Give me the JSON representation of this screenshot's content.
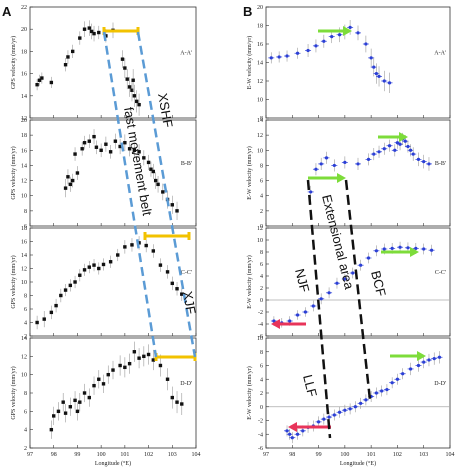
{
  "figure": {
    "panel_letters": [
      "A",
      "B"
    ],
    "x_label_left": "Longitude (°E)",
    "x_label_right": "Longitude (°E)",
    "y_label_left": "GPS velocity (mm/yr)",
    "y_label_right": "E-W velocity (mm/yr)",
    "overlay_labels": {
      "xshf": "XSHF",
      "fast_belt": "fast movement belt",
      "xjf": "XJF",
      "extensional_area": "Extensional area",
      "njf": "NJF",
      "bcf": "BCF",
      "llf": "LLF"
    },
    "colors": {
      "left_points": "#111111",
      "right_points": "#2b3fd6",
      "yellow_bar": "#f2c200",
      "blue_dash": "#5b9bd5",
      "black_dash": "#111111",
      "green_arrow": "#7ddc3a",
      "red_arrow": "#e8345a",
      "zero_line": "#aaaaaa"
    }
  },
  "chart_data": [
    {
      "type": "scatter",
      "panel": "A",
      "profile": "A-A'",
      "ylabel": "GPS velocity (mm/yr)",
      "xlabel": "",
      "xlim": [
        97,
        104
      ],
      "ylim": [
        12,
        22
      ],
      "yticks": [
        12,
        14,
        16,
        18,
        20,
        22
      ],
      "xticks": [
        97,
        98,
        99,
        100,
        101,
        102,
        103,
        104
      ],
      "show_x_tick_labels": false,
      "x": [
        97.3,
        97.4,
        97.5,
        97.9,
        98.5,
        98.6,
        98.8,
        99.1,
        99.3,
        99.5,
        99.6,
        99.7,
        99.9,
        100.2,
        100.5,
        100.9,
        101.0,
        101.1,
        101.2,
        101.3,
        101.35,
        101.4,
        101.5,
        101.6
      ],
      "y": [
        15.0,
        15.4,
        15.6,
        15.2,
        16.8,
        17.5,
        18.0,
        19.2,
        20.0,
        20.1,
        19.8,
        19.6,
        19.7,
        19.4,
        19.9,
        17.3,
        16.5,
        15.5,
        14.8,
        14.5,
        15.4,
        14.0,
        13.5,
        13.2
      ],
      "err": [
        0.5,
        0.5,
        0.5,
        0.5,
        0.6,
        0.6,
        0.6,
        0.6,
        0.7,
        0.7,
        0.7,
        0.7,
        0.6,
        0.6,
        0.7,
        0.8,
        0.9,
        0.9,
        0.9,
        1.0,
        1.0,
        1.0,
        1.0,
        1.0
      ]
    },
    {
      "type": "scatter",
      "panel": "A",
      "profile": "B-B'",
      "ylabel": "GPS velocity (mm/yr)",
      "xlabel": "",
      "xlim": [
        97,
        104
      ],
      "ylim": [
        6,
        20
      ],
      "yticks": [
        6,
        8,
        10,
        12,
        14,
        16,
        18,
        20
      ],
      "xticks": [
        97,
        98,
        99,
        100,
        101,
        102,
        103,
        104
      ],
      "show_x_tick_labels": false,
      "x": [
        98.5,
        98.6,
        98.7,
        98.8,
        98.9,
        99.0,
        99.2,
        99.3,
        99.5,
        99.7,
        99.8,
        100.0,
        100.2,
        100.4,
        100.6,
        100.8,
        101.0,
        101.2,
        101.4,
        101.6,
        101.8,
        102.0,
        102.1,
        102.2,
        102.3,
        102.4,
        102.6,
        102.8,
        103.0,
        103.2
      ],
      "y": [
        11.0,
        12.5,
        11.5,
        12.0,
        15.5,
        13.0,
        16.2,
        17.0,
        17.2,
        17.8,
        16.4,
        16.0,
        16.8,
        15.8,
        17.2,
        16.5,
        17.0,
        16.2,
        16.0,
        15.8,
        15.0,
        14.4,
        13.5,
        13.2,
        12.0,
        11.5,
        10.5,
        9.5,
        8.8,
        8.0
      ],
      "err": [
        1.2,
        1.0,
        1.0,
        0.9,
        0.9,
        0.9,
        0.9,
        0.9,
        0.9,
        1.0,
        0.9,
        0.9,
        1.0,
        0.9,
        1.0,
        1.0,
        1.1,
        1.0,
        1.0,
        1.0,
        1.0,
        1.0,
        1.0,
        1.0,
        1.1,
        1.1,
        1.1,
        1.2,
        1.2,
        1.2
      ]
    },
    {
      "type": "scatter",
      "panel": "A",
      "profile": "C-C'",
      "ylabel": "GPS velocity (mm/yr)",
      "xlabel": "",
      "xlim": [
        97,
        104
      ],
      "ylim": [
        2,
        18
      ],
      "yticks": [
        2,
        4,
        6,
        8,
        10,
        12,
        14,
        16,
        18
      ],
      "xticks": [
        97,
        98,
        99,
        100,
        101,
        102,
        103,
        104
      ],
      "show_x_tick_labels": false,
      "x": [
        97.3,
        97.6,
        97.9,
        98.1,
        98.3,
        98.5,
        98.7,
        98.9,
        99.1,
        99.3,
        99.5,
        99.7,
        99.9,
        100.1,
        100.4,
        100.7,
        101.0,
        101.3,
        101.6,
        101.9,
        102.2,
        102.5,
        102.8,
        103.0,
        103.2,
        103.4
      ],
      "y": [
        4.0,
        4.5,
        5.5,
        6.5,
        8.0,
        8.8,
        9.5,
        10.0,
        11.0,
        11.8,
        12.2,
        12.5,
        12.0,
        12.6,
        13.0,
        14.0,
        15.2,
        15.5,
        15.8,
        15.4,
        14.6,
        12.5,
        11.5,
        9.8,
        9.0,
        8.2
      ],
      "err": [
        1.0,
        1.2,
        1.0,
        1.0,
        1.0,
        0.9,
        0.9,
        0.9,
        0.9,
        0.9,
        0.9,
        0.9,
        0.9,
        0.9,
        0.9,
        0.9,
        1.0,
        1.0,
        1.0,
        1.0,
        1.0,
        1.0,
        1.0,
        1.0,
        1.0,
        1.0
      ]
    },
    {
      "type": "scatter",
      "panel": "A",
      "profile": "D-D'",
      "ylabel": "GPS velocity (mm/yr)",
      "xlabel": "Longitude (°E)",
      "xlim": [
        97,
        104
      ],
      "ylim": [
        2,
        14
      ],
      "yticks": [
        2,
        4,
        6,
        8,
        10,
        12,
        14
      ],
      "xticks": [
        97,
        98,
        99,
        100,
        101,
        102,
        103,
        104
      ],
      "show_x_tick_labels": true,
      "x": [
        97.9,
        98.0,
        98.2,
        98.4,
        98.5,
        98.7,
        98.9,
        99.0,
        99.1,
        99.3,
        99.5,
        99.7,
        99.9,
        100.1,
        100.3,
        100.5,
        100.8,
        101.0,
        101.2,
        101.4,
        101.6,
        101.8,
        102.0,
        102.2,
        102.5,
        102.8,
        103.0,
        103.2,
        103.4
      ],
      "y": [
        4.0,
        5.5,
        6.0,
        7.0,
        5.8,
        6.5,
        7.2,
        6.0,
        7.0,
        8.0,
        7.5,
        8.8,
        9.5,
        9.0,
        10.0,
        10.5,
        11.0,
        10.8,
        11.2,
        12.5,
        11.8,
        12.0,
        12.2,
        11.6,
        11.0,
        9.5,
        7.5,
        7.0,
        6.8
      ],
      "err": [
        1.0,
        1.0,
        1.0,
        1.0,
        1.0,
        1.0,
        1.0,
        1.0,
        1.0,
        1.0,
        1.0,
        1.0,
        1.0,
        1.0,
        1.0,
        1.0,
        1.1,
        1.1,
        1.1,
        1.1,
        1.1,
        1.1,
        1.1,
        1.1,
        1.2,
        1.2,
        1.2,
        1.2,
        1.2
      ]
    },
    {
      "type": "scatter",
      "panel": "B",
      "profile": "A-A'",
      "ylabel": "E-W velocity (mm/yr)",
      "xlabel": "",
      "xlim": [
        97,
        104
      ],
      "ylim": [
        8,
        20
      ],
      "yticks": [
        8,
        10,
        12,
        14,
        16,
        18,
        20
      ],
      "xticks": [
        97,
        98,
        99,
        100,
        101,
        102,
        103,
        104
      ],
      "show_x_tick_labels": false,
      "x": [
        97.2,
        97.5,
        97.8,
        98.2,
        98.6,
        98.9,
        99.2,
        99.5,
        99.8,
        100.0,
        100.2,
        100.5,
        100.8,
        101.0,
        101.1,
        101.2,
        101.3,
        101.5,
        101.7
      ],
      "y": [
        14.5,
        14.6,
        14.7,
        15.0,
        15.3,
        15.8,
        16.3,
        16.8,
        17.0,
        17.3,
        17.8,
        17.2,
        16.0,
        14.5,
        13.5,
        12.8,
        12.5,
        12.0,
        11.8
      ],
      "err": [
        0.6,
        0.6,
        0.6,
        0.6,
        0.7,
        0.7,
        0.7,
        0.7,
        0.8,
        0.8,
        0.8,
        0.8,
        0.9,
        1.0,
        1.0,
        1.1,
        1.1,
        1.1,
        1.1
      ]
    },
    {
      "type": "scatter",
      "panel": "B",
      "profile": "B-B'",
      "ylabel": "E-W velocity (mm/yr)",
      "xlabel": "",
      "xlim": [
        97,
        104
      ],
      "ylim": [
        0,
        14
      ],
      "yticks": [
        0,
        2,
        4,
        6,
        8,
        10,
        12,
        14
      ],
      "xticks": [
        97,
        98,
        99,
        100,
        101,
        102,
        103,
        104
      ],
      "show_x_tick_labels": false,
      "x": [
        98.7,
        98.9,
        99.1,
        99.3,
        99.6,
        100.0,
        100.5,
        100.9,
        101.1,
        101.3,
        101.5,
        101.7,
        101.9,
        102.0,
        102.1,
        102.2,
        102.3,
        102.4,
        102.5,
        102.6,
        102.8,
        103.0,
        103.2
      ],
      "y": [
        4.5,
        7.5,
        8.2,
        9.0,
        8.0,
        8.4,
        8.2,
        8.8,
        9.5,
        9.8,
        10.2,
        10.6,
        10.0,
        11.0,
        10.8,
        11.5,
        11.2,
        10.5,
        10.0,
        9.5,
        8.8,
        8.5,
        8.2
      ],
      "err": [
        0.8,
        0.8,
        0.8,
        0.8,
        0.8,
        0.8,
        0.8,
        0.8,
        0.8,
        0.8,
        0.8,
        0.8,
        0.8,
        0.8,
        0.8,
        0.8,
        0.8,
        0.8,
        0.8,
        0.9,
        0.9,
        0.9,
        0.9
      ]
    },
    {
      "type": "scatter",
      "panel": "B",
      "profile": "C-C'",
      "ylabel": "E-W velocity (mm/yr)",
      "xlabel": "",
      "xlim": [
        97,
        104
      ],
      "ylim": [
        -6,
        12
      ],
      "yticks": [
        -6,
        -4,
        -2,
        0,
        2,
        4,
        6,
        8,
        10,
        12
      ],
      "xticks": [
        97,
        98,
        99,
        100,
        101,
        102,
        103,
        104
      ],
      "show_x_tick_labels": false,
      "zero_line": true,
      "x": [
        97.3,
        97.6,
        97.9,
        98.2,
        98.5,
        98.8,
        99.1,
        99.4,
        99.7,
        100.0,
        100.3,
        100.6,
        100.9,
        101.2,
        101.5,
        101.8,
        102.1,
        102.4,
        102.7,
        103.0,
        103.3
      ],
      "y": [
        -3.5,
        -3.8,
        -3.5,
        -2.5,
        -2.0,
        -1.0,
        0.2,
        1.2,
        2.8,
        3.5,
        4.5,
        5.8,
        7.0,
        8.2,
        8.5,
        8.6,
        8.8,
        8.7,
        8.6,
        8.5,
        8.3
      ],
      "err": [
        0.8,
        0.8,
        0.8,
        0.8,
        0.8,
        0.9,
        0.9,
        0.9,
        0.9,
        0.9,
        0.9,
        0.9,
        0.9,
        0.9,
        0.9,
        0.9,
        0.9,
        0.9,
        0.9,
        0.9,
        0.9
      ]
    },
    {
      "type": "scatter",
      "panel": "B",
      "profile": "D-D'",
      "ylabel": "E-W velocity (mm/yr)",
      "xlabel": "Longitude (°E)",
      "xlim": [
        97,
        104
      ],
      "ylim": [
        -6,
        10
      ],
      "yticks": [
        -6,
        -4,
        -2,
        0,
        2,
        4,
        6,
        8,
        10
      ],
      "xticks": [
        97,
        98,
        99,
        100,
        101,
        102,
        103,
        104
      ],
      "show_x_tick_labels": true,
      "zero_line": true,
      "x": [
        97.8,
        97.9,
        98.0,
        98.2,
        98.4,
        98.6,
        98.8,
        99.0,
        99.2,
        99.4,
        99.6,
        99.8,
        100.0,
        100.2,
        100.4,
        100.6,
        100.8,
        101.0,
        101.2,
        101.4,
        101.6,
        101.8,
        102.0,
        102.2,
        102.5,
        102.8,
        103.0,
        103.2,
        103.4,
        103.6
      ],
      "y": [
        -3.5,
        -4.0,
        -4.5,
        -4.0,
        -3.5,
        -3.0,
        -2.8,
        -2.2,
        -1.8,
        -1.5,
        -1.2,
        -0.8,
        -0.5,
        -0.3,
        0.0,
        0.5,
        1.0,
        1.5,
        2.0,
        2.3,
        2.5,
        3.5,
        4.0,
        4.8,
        5.5,
        6.0,
        6.5,
        6.8,
        7.0,
        7.2
      ],
      "err": [
        0.8,
        0.8,
        0.8,
        0.8,
        0.8,
        0.8,
        0.8,
        0.8,
        0.8,
        0.8,
        0.8,
        0.8,
        0.8,
        0.8,
        0.8,
        0.8,
        0.8,
        0.8,
        0.8,
        0.8,
        0.8,
        0.8,
        0.8,
        0.8,
        0.9,
        0.9,
        0.9,
        0.9,
        0.9,
        0.9
      ]
    }
  ]
}
